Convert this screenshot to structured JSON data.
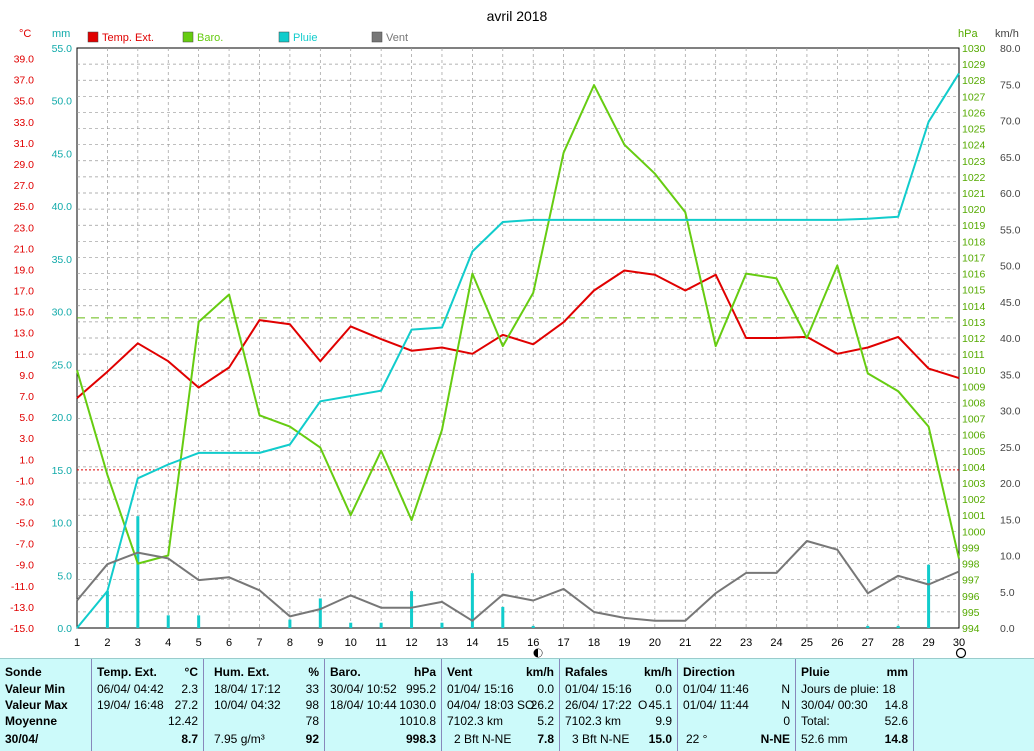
{
  "chart_data": {
    "type": "line",
    "title": "avril 2018",
    "x": [
      1,
      2,
      3,
      4,
      5,
      6,
      7,
      8,
      9,
      10,
      11,
      12,
      13,
      14,
      15,
      16,
      17,
      18,
      19,
      20,
      21,
      22,
      23,
      24,
      25,
      26,
      27,
      28,
      29,
      30
    ],
    "x_ticks": [
      "1",
      "2",
      "3",
      "4",
      "5",
      "6",
      "7",
      "8",
      "9",
      "10",
      "11",
      "12",
      "13",
      "14",
      "15",
      "16",
      "17",
      "18",
      "19",
      "20",
      "21",
      "22",
      "23",
      "24",
      "25",
      "26",
      "27",
      "28",
      "29",
      "30"
    ],
    "series": [
      {
        "name": "Temp. Ext.",
        "axis": "temp",
        "color": "#e00000",
        "values": [
          6.8,
          9.3,
          12.0,
          10.3,
          7.8,
          9.7,
          14.2,
          13.8,
          10.3,
          13.6,
          12.4,
          11.3,
          11.6,
          11.0,
          12.8,
          11.9,
          14.0,
          17.0,
          18.9,
          18.5,
          17.0,
          18.5,
          12.5,
          12.5,
          12.6,
          11.0,
          11.6,
          12.6,
          9.6,
          8.7
        ]
      },
      {
        "name": "Baro.",
        "axis": "baro",
        "color": "#66cc11",
        "values": [
          1010.0,
          1003.5,
          998.0,
          998.5,
          1013.0,
          1014.7,
          1007.2,
          1006.5,
          1005.2,
          1001.0,
          1005.0,
          1000.7,
          1006.3,
          1016.0,
          1011.5,
          1014.8,
          1023.5,
          1027.7,
          1024.0,
          1022.2,
          1019.8,
          1011.5,
          1016.0,
          1015.7,
          1012.0,
          1016.5,
          1009.8,
          1008.7,
          1006.5,
          998.3
        ]
      },
      {
        "name": "Pluie",
        "axis": "mm",
        "color": "#11cccc",
        "values": [
          0,
          3.5,
          14.2,
          15.5,
          16.6,
          16.6,
          16.6,
          17.4,
          21.5,
          22.0,
          22.5,
          28.3,
          28.5,
          35.7,
          38.5,
          38.7,
          38.7,
          38.7,
          38.7,
          38.7,
          38.7,
          38.7,
          38.7,
          38.7,
          38.7,
          38.7,
          38.8,
          39.0,
          48.0,
          52.6
        ]
      },
      {
        "name": "Vent",
        "axis": "kmh",
        "color": "#777777",
        "values": [
          3.8,
          8.8,
          10.4,
          9.6,
          6.6,
          7.0,
          5.2,
          1.6,
          2.6,
          4.5,
          2.8,
          2.8,
          3.6,
          1.0,
          4.6,
          3.8,
          5.4,
          2.2,
          1.4,
          1.0,
          1.0,
          4.8,
          7.6,
          7.6,
          12.0,
          10.8,
          4.8,
          7.2,
          6.0,
          7.8
        ]
      }
    ],
    "rain_bars": {
      "name": "Pluie",
      "axis": "mm",
      "color": "#11cccc",
      "values": [
        0,
        3.5,
        10.6,
        1.2,
        1.2,
        0,
        0,
        0.8,
        2.8,
        0.5,
        0.5,
        3.5,
        0.5,
        5.2,
        2.0,
        0.2,
        0,
        0,
        0,
        0,
        0,
        0,
        0,
        0,
        0,
        0,
        0.2,
        0.2,
        6.0,
        0
      ]
    },
    "axes": {
      "temp": {
        "label": "°C",
        "range": [
          -15,
          40
        ],
        "ticks": [
          "39.0",
          "37.0",
          "35.0",
          "33.0",
          "31.0",
          "29.0",
          "27.0",
          "25.0",
          "23.0",
          "21.0",
          "19.0",
          "17.0",
          "15.0",
          "13.0",
          "11.0",
          "9.0",
          "7.0",
          "5.0",
          "3.0",
          "1.0",
          "-1.0",
          "-3.0",
          "-5.0",
          "-7.0",
          "-9.0",
          "-11.0",
          "-13.0",
          "-15.0"
        ],
        "color": "#e00000"
      },
      "mm": {
        "label": "mm",
        "range": [
          0,
          55
        ],
        "ticks": [
          "55.0",
          "50.0",
          "45.0",
          "40.0",
          "35.0",
          "30.0",
          "25.0",
          "20.0",
          "15.0",
          "10.0",
          "5.0",
          "0.0"
        ],
        "color": "#11aaaa"
      },
      "baro": {
        "label": "hPa",
        "range": [
          994,
          1030
        ],
        "ticks": [
          "1030",
          "1029",
          "1028",
          "1027",
          "1026",
          "1025",
          "1024",
          "1023",
          "1022",
          "1021",
          "1020",
          "1019",
          "1018",
          "1017",
          "1016",
          "1015",
          "1014",
          "1013",
          "1012",
          "1011",
          "1010",
          "1009",
          "1008",
          "1007",
          "1006",
          "1005",
          "1004",
          "1003",
          "1002",
          "1001",
          "1000",
          "999",
          "998",
          "997",
          "996",
          "995",
          "994"
        ],
        "color": "#55aa00"
      },
      "kmh": {
        "label": "km/h",
        "range": [
          0,
          80
        ],
        "ticks": [
          "80.0",
          "75.0",
          "70.0",
          "65.0",
          "60.0",
          "55.0",
          "50.0",
          "45.0",
          "40.0",
          "35.0",
          "30.0",
          "25.0",
          "20.0",
          "15.0",
          "10.0",
          "5.0",
          "0.0"
        ],
        "color": "#444444"
      }
    },
    "ref_lines": {
      "baro_dashed": 1013.25,
      "temp_dotted": 0
    },
    "legend_position": "top-left",
    "grid": true
  },
  "summary": {
    "sonde": {
      "title": "Sonde",
      "rows": [
        "Valeur Min",
        "Valeur Max",
        "Moyenne",
        "30/04/"
      ]
    },
    "temp": {
      "title": "Temp. Ext.",
      "unit": "°C",
      "min_date": "06/04/  04:42",
      "min_val": "2.3",
      "max_date": "19/04/  16:48",
      "max_val": "27.2",
      "avg": "12.42",
      "cur": "8.7"
    },
    "hum": {
      "title": "Hum. Ext.",
      "unit": "%",
      "min_date": "18/04/  17:12",
      "min_val": "33",
      "max_date": "10/04/  04:32",
      "max_val": "98",
      "avg": "78",
      "extra": "7.95 g/m³",
      "cur": "92"
    },
    "baro": {
      "title": "Baro.",
      "unit": "hPa",
      "min_date": "30/04/  10:52",
      "min_val": "995.2",
      "max_date": "18/04/  10:44",
      "max_val": "1030.0",
      "avg": "1010.8",
      "cur": "998.3"
    },
    "vent": {
      "title": "Vent",
      "unit": "km/h",
      "min_date": "01/04/  15:16",
      "min_val": "0.0",
      "max_date": "04/04/  18:03",
      "max_dir": "SO",
      "max_val": "26.2",
      "dist": "7102.3 km",
      "avg": "5.2",
      "bft": "2 Bft N-NE",
      "cur": "7.8"
    },
    "rafales": {
      "title": "Rafales",
      "unit": "km/h",
      "min_date": "01/04/  15:16",
      "min_val": "0.0",
      "max_date": "26/04/  17:22",
      "max_dir": "O",
      "max_val": "45.1",
      "dist": "7102.3 km",
      "avg": "9.9",
      "bft": "3 Bft N-NE",
      "cur": "15.0"
    },
    "direction": {
      "title": "Direction",
      "min_date": "01/04/  11:46",
      "min_val": "N",
      "max_date": "01/04/  11:44",
      "max_val": "N",
      "avg": "0",
      "deg": "22 °",
      "cur": "N-NE"
    },
    "pluie": {
      "title": "Pluie",
      "unit": "mm",
      "jours": "Jours de pluie: 18",
      "max_date": "30/04/  00:30",
      "max_val": "14.8",
      "total_label": "Total:",
      "total_val": "52.6",
      "cur_total": "52.6 mm",
      "cur": "14.8"
    }
  }
}
